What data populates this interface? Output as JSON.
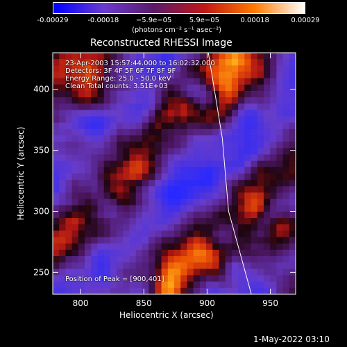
{
  "chart_data": {
    "type": "heatmap",
    "title": "Reconstructed RHESSI Image",
    "xlabel": "Heliocentric X (arcsec)",
    "ylabel": "Heliocentric Y (arcsec)",
    "xlim": [
      778,
      970
    ],
    "ylim": [
      232,
      430
    ],
    "x_ticks": [
      800,
      850,
      900,
      950
    ],
    "y_ticks": [
      250,
      300,
      350,
      400
    ],
    "colorbar": {
      "ticks": [
        "-0.00029",
        "-0.00018",
        "−5.9e−05",
        "5.9e−05",
        "0.00018",
        "0.00029"
      ],
      "unit_text": "(photons cm⁻² s⁻¹ asec⁻²)",
      "colors": [
        "#0000ff",
        "#6a3bd0",
        "#5a1a6a",
        "#c01818",
        "#ff7a00",
        "#ffffff"
      ]
    },
    "annotations": [
      "23-Apr-2003 15:57:44.000 to 16:02:32.000",
      "Detectors: 3F 4F 5F 6F 7F 8F 9F",
      "Energy Range: 25.0 - 50.0 keV",
      "Clean     Total counts: 3.51E+03"
    ],
    "peak_label": "Position of Peak = [900,401]",
    "peak": [
      900,
      401
    ],
    "limb_line": [
      [
        901,
        430
      ],
      [
        912,
        360
      ],
      [
        917,
        300
      ],
      [
        935,
        232
      ]
    ]
  },
  "footer": {
    "date": "1-May-2022 03:10"
  }
}
